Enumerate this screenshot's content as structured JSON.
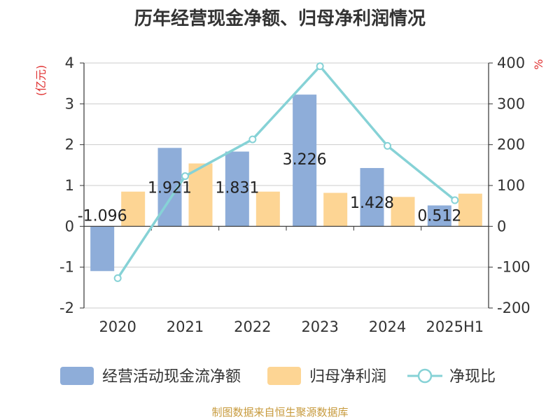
{
  "title": "历年经营现金净额、归母净利润情况",
  "source": "制图数据来自恒生聚源数据库",
  "colors": {
    "operating_cf": "#8eadd9",
    "net_profit": "#fdd594",
    "ratio_line": "#86d2d6",
    "axis": "#333333",
    "grid": "#cccccc",
    "unit_label": "#e03030",
    "source_text": "#c79a3c",
    "label_text": "#222222"
  },
  "chart_data": {
    "type": "bar",
    "categories": [
      "2020",
      "2021",
      "2022",
      "2023",
      "2024",
      "2025H1"
    ],
    "series": [
      {
        "name": "经营活动现金流净额",
        "type": "bar",
        "axis": "left",
        "values": [
          -1.096,
          1.921,
          1.831,
          3.226,
          1.428,
          0.512
        ],
        "labels": [
          "-1.096",
          "1.921",
          "1.831",
          "3.226",
          "1.428",
          "0.512"
        ]
      },
      {
        "name": "归母净利润",
        "type": "bar",
        "axis": "left",
        "values": [
          0.85,
          1.54,
          0.85,
          0.82,
          0.72,
          0.8
        ]
      },
      {
        "name": "净现比",
        "type": "line",
        "axis": "right",
        "values": [
          -127,
          123,
          213,
          392,
          197,
          64
        ]
      }
    ],
    "left_axis": {
      "unit": "(亿元)",
      "ylim": [
        -2,
        4
      ],
      "ticks": [
        "4",
        "3",
        "2",
        "1",
        "0",
        "-1",
        "-2"
      ]
    },
    "right_axis": {
      "unit": "%",
      "ylim": [
        -200,
        400
      ],
      "ticks": [
        "400",
        "300",
        "200",
        "100",
        "0",
        "-100",
        "-200"
      ]
    },
    "grid": true,
    "legend_position": "bottom"
  }
}
